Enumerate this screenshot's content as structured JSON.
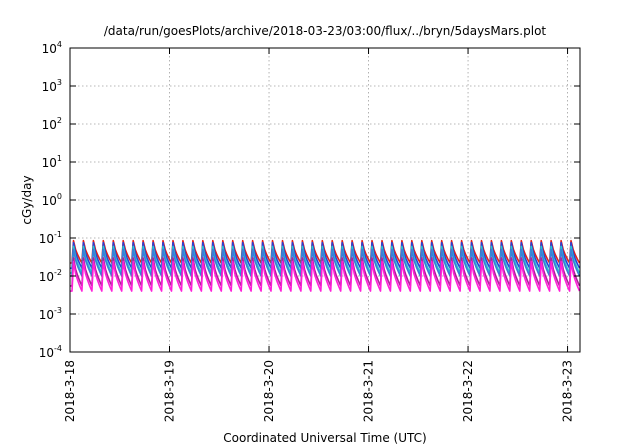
{
  "chart_data": {
    "type": "line",
    "title": "/data/run/goesPlots/archive/2018-03-23/03:00/flux/../bryn/5daysMars.plot",
    "xlabel": "Coordinated Universal Time (UTC)",
    "ylabel": "cGy/day",
    "y_scale": "log",
    "ylim": [
      0.0001,
      10000
    ],
    "y_ticks": [
      {
        "base": "10",
        "exp": "-4"
      },
      {
        "base": "10",
        "exp": "-3"
      },
      {
        "base": "10",
        "exp": "-2"
      },
      {
        "base": "10",
        "exp": "-1"
      },
      {
        "base": "10",
        "exp": "0"
      },
      {
        "base": "10",
        "exp": "1"
      },
      {
        "base": "10",
        "exp": "2"
      },
      {
        "base": "10",
        "exp": "3"
      },
      {
        "base": "10",
        "exp": "4"
      }
    ],
    "xlim": [
      "2018-03-18 00:00",
      "2018-03-23 03:00"
    ],
    "x_ticks": [
      "2018-3-18",
      "2018-3-19",
      "2018-3-20",
      "2018-3-21",
      "2018-3-22",
      "2018-3-23"
    ],
    "grid": true,
    "cycle_hours": 2.4,
    "note_values": "Sawtooth periodic flux; each series given as peak and trough values (cGy/day) per cycle",
    "series": [
      {
        "color": "#e0201a",
        "peak": 0.085,
        "trough": 0.022
      },
      {
        "color": "#2a3fd6",
        "peak": 0.075,
        "trough": 0.016
      },
      {
        "color": "#27c9d0",
        "peak": 0.06,
        "trough": 0.012
      },
      {
        "color": "#3a7fd8",
        "peak": 0.05,
        "trough": 0.01
      },
      {
        "color": "#b0209a",
        "peak": 0.03,
        "trough": 0.0055
      },
      {
        "color": "#ff20d8",
        "peak": 0.024,
        "trough": 0.004
      }
    ]
  }
}
